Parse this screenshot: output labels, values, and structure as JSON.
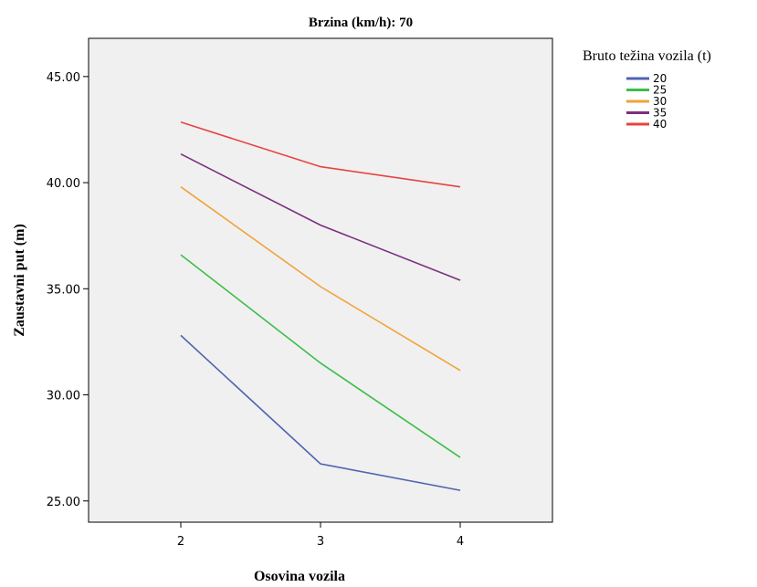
{
  "chart_data": {
    "type": "line",
    "title": "Brzina (km/h): 70",
    "xlabel": "Osovina vozila",
    "ylabel": "Zaustavni put (m)",
    "categories": [
      "2",
      "3",
      "4"
    ],
    "ylim": [
      24.0,
      46.8
    ],
    "yticks": [
      "25.00",
      "30.00",
      "35.00",
      "40.00",
      "45.00"
    ],
    "legend_title": "Bruto težina vozila (t)",
    "legend_position": "right",
    "grid": false,
    "series": [
      {
        "name": "20",
        "color": "#4f63b0",
        "values": [
          32.8,
          26.75,
          25.5
        ]
      },
      {
        "name": "25",
        "color": "#3cbe4a",
        "values": [
          36.6,
          31.5,
          27.05
        ]
      },
      {
        "name": "30",
        "color": "#f2a23a",
        "values": [
          39.8,
          35.1,
          31.15
        ]
      },
      {
        "name": "35",
        "color": "#7b2f7f",
        "values": [
          41.35,
          38.0,
          35.4
        ]
      },
      {
        "name": "40",
        "color": "#e8433f",
        "values": [
          42.85,
          40.75,
          39.8
        ]
      }
    ]
  }
}
